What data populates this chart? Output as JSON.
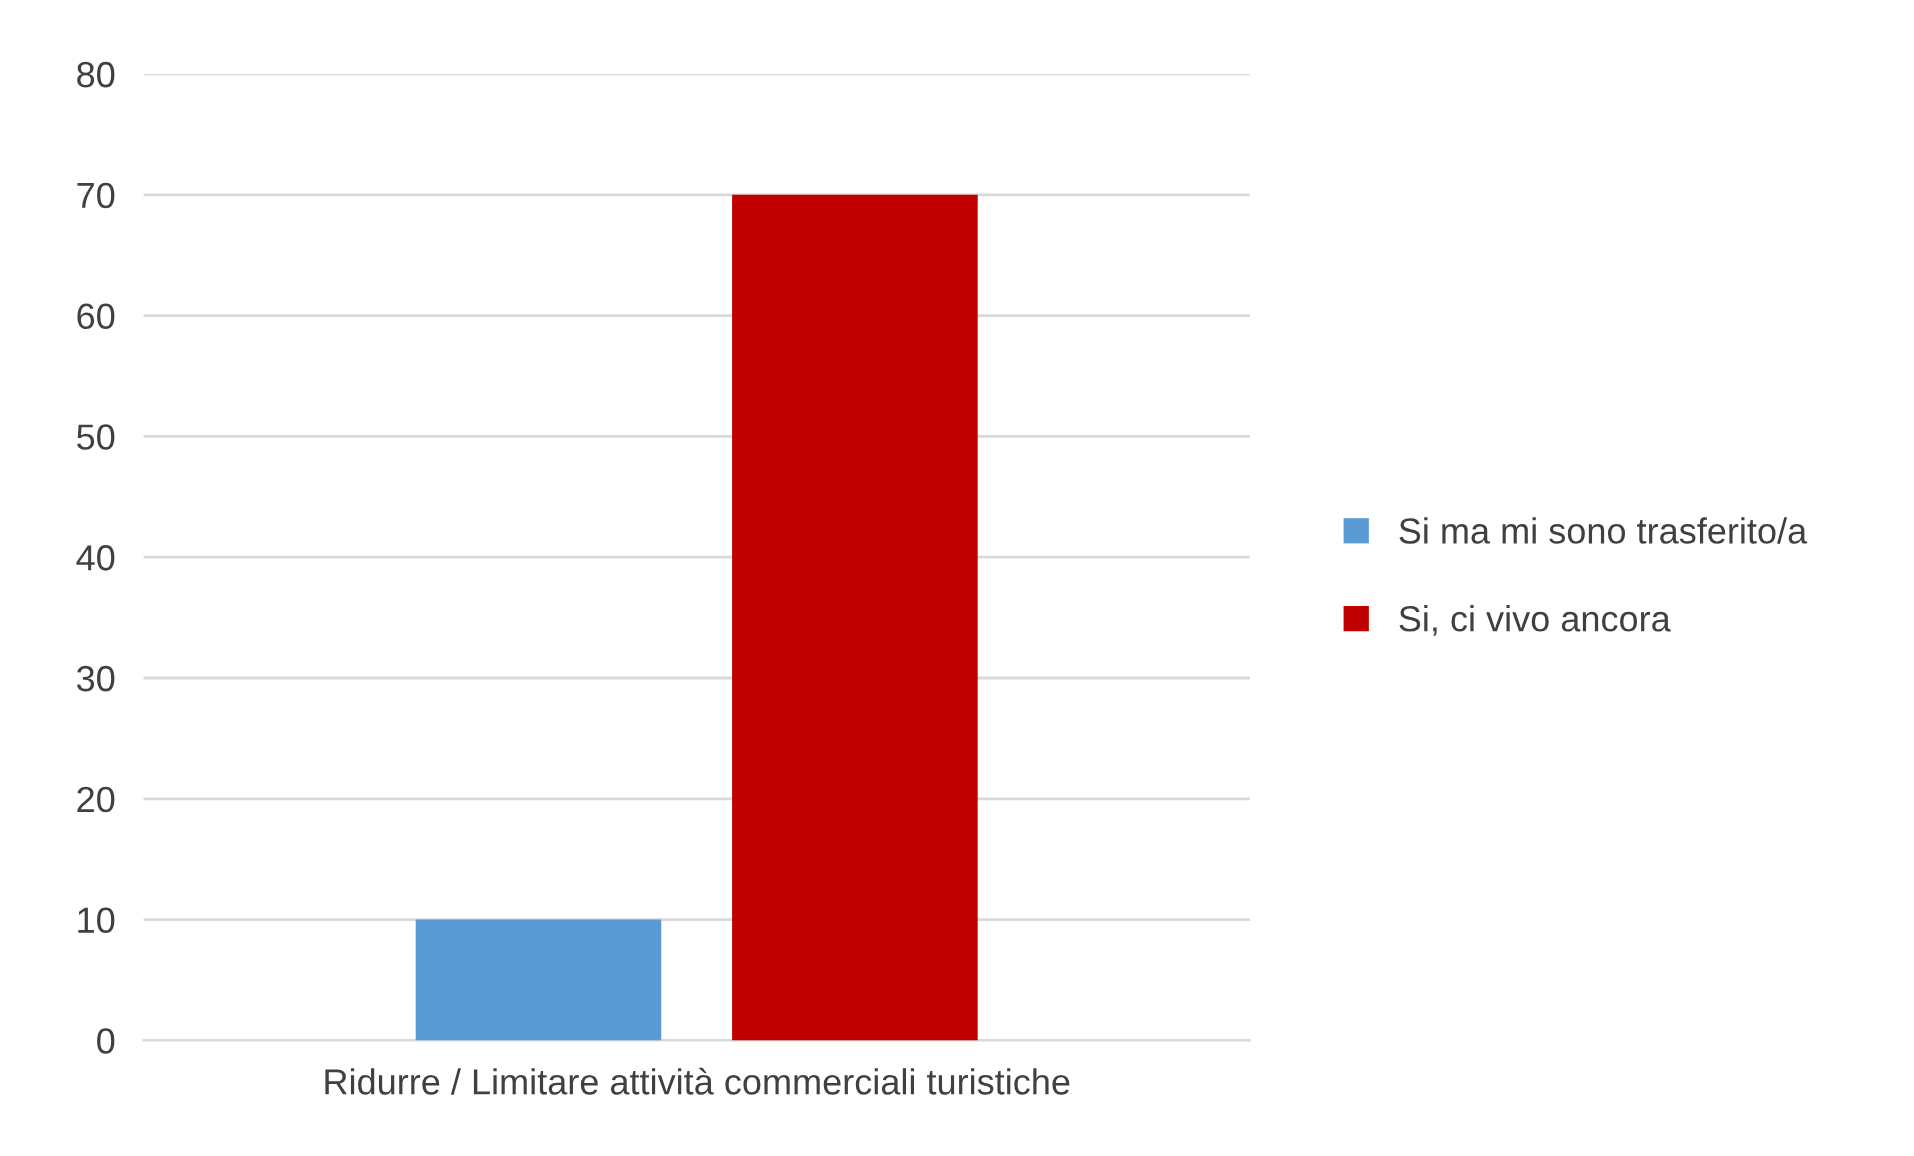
{
  "chart_data": {
    "type": "bar",
    "categories": [
      "Ridurre / Limitare attività commerciali turistiche"
    ],
    "series": [
      {
        "name": "Si ma mi sono trasferito/a",
        "color": "#5b9bd5",
        "values": [
          10
        ]
      },
      {
        "name": "Si, ci vivo ancora",
        "color": "#c00000",
        "values": [
          70
        ]
      }
    ],
    "ylim": [
      0,
      80
    ],
    "yticks": [
      0,
      10,
      20,
      30,
      40,
      50,
      60,
      70,
      80
    ],
    "grid": "y",
    "legend": "right"
  }
}
